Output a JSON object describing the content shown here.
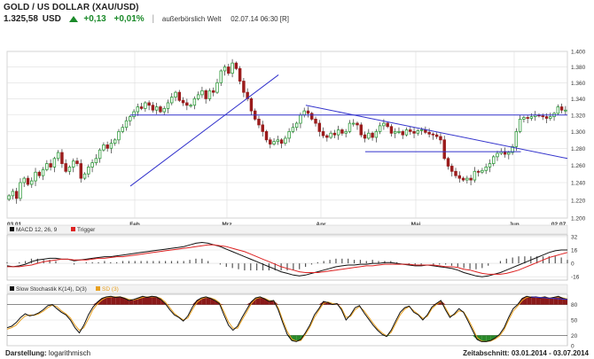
{
  "header": {
    "title": "GOLD / US DOLLAR (XAU/USD)",
    "price": "1.325,58",
    "currency": "USD",
    "change_abs": "+0,13",
    "change_pct": "+0,01%",
    "exchange": "außerbörslich Welt",
    "timestamp": "02.07.14 06:30 [R]"
  },
  "footer": {
    "display_label": "Darstellung:",
    "display_value": "logarithmisch",
    "period_label": "Zeitabschnitt:",
    "period_value": "03.01.2014 - 03.07.2014"
  },
  "panels": {
    "macd_legend": "MACD 12, 26, 9",
    "macd_trigger": "Trigger",
    "stoch_legend": "Slow Stochastik K(14), D(3)",
    "stoch_d": "SD (3)"
  },
  "colors": {
    "up_candle": "#2e9a3a",
    "down_candle": "#9b1c1c",
    "trendline": "#3333cc",
    "macd_line": "#111111",
    "trigger_line": "#dd2222",
    "histogram": "#555555",
    "stoch_k": "#111111",
    "stoch_d": "#e8a020",
    "fill_overbought": "#8b1a1a",
    "fill_oversold": "#2a8a2a",
    "grid": "#dddddd"
  },
  "chart_data": [
    {
      "type": "candlestick",
      "x_labels": [
        "03.01.",
        "Feb",
        "Mrz",
        "Apr",
        "Mai",
        "Jun",
        "02.07."
      ],
      "y_ticks": [
        "1.400",
        "1.380",
        "1.360",
        "1.340",
        "1.320",
        "1.300",
        "1.280",
        "1.260",
        "1.240",
        "1.220",
        "1.200"
      ],
      "ylim": [
        1200,
        1400
      ],
      "log_scale": true,
      "close": [
        1225,
        1230,
        1222,
        1240,
        1245,
        1238,
        1242,
        1252,
        1248,
        1255,
        1262,
        1258,
        1268,
        1275,
        1262,
        1253,
        1258,
        1265,
        1262,
        1245,
        1250,
        1258,
        1263,
        1268,
        1278,
        1284,
        1280,
        1286,
        1290,
        1300,
        1305,
        1313,
        1318,
        1324,
        1330,
        1328,
        1335,
        1332,
        1326,
        1330,
        1324,
        1328,
        1335,
        1342,
        1348,
        1338,
        1335,
        1332,
        1332,
        1340,
        1345,
        1350,
        1340,
        1350,
        1348,
        1360,
        1375,
        1380,
        1372,
        1385,
        1378,
        1362,
        1348,
        1340,
        1325,
        1315,
        1308,
        1300,
        1290,
        1285,
        1288,
        1290,
        1286,
        1292,
        1300,
        1305,
        1310,
        1320,
        1325,
        1322,
        1315,
        1310,
        1300,
        1295,
        1293,
        1298,
        1296,
        1302,
        1298,
        1300,
        1310,
        1310,
        1308,
        1296,
        1292,
        1298,
        1293,
        1300,
        1307,
        1310,
        1306,
        1298,
        1300,
        1300,
        1296,
        1302,
        1300,
        1298,
        1301,
        1302,
        1299,
        1297,
        1296,
        1294,
        1290,
        1268,
        1259,
        1253,
        1248,
        1245,
        1243,
        1245,
        1243,
        1253,
        1252,
        1254,
        1258,
        1262,
        1270,
        1274,
        1276,
        1273,
        1275,
        1282,
        1300,
        1315,
        1317,
        1316,
        1318,
        1320,
        1319,
        1318,
        1316,
        1318,
        1322,
        1330,
        1326,
        1326
      ],
      "trendlines": [
        {
          "from": [
            "2014-01-31",
            1236
          ],
          "to": [
            "2014-03-18",
            1370
          ]
        },
        {
          "from": [
            "2014-03-27",
            1332
          ],
          "to": [
            "2014-07-03",
            1268
          ]
        },
        {
          "from": [
            "2014-01-31",
            1320
          ],
          "to": [
            "2014-07-03",
            1320
          ]
        },
        {
          "from": [
            "2014-04-15",
            1276
          ],
          "to": [
            "2014-06-05",
            1276
          ]
        }
      ]
    },
    {
      "type": "line",
      "title": "MACD 12, 26, 9",
      "y_ticks": [
        "32",
        "16",
        "0",
        "-16"
      ],
      "ylim": [
        -20,
        34
      ],
      "series": [
        {
          "name": "MACD 12, 26, 9",
          "values": [
            -3,
            -4,
            -3,
            -1,
            2,
            4,
            5,
            6,
            6,
            5,
            5,
            3,
            4,
            5,
            6,
            7,
            8,
            8,
            9,
            10,
            11,
            12,
            13,
            14,
            15,
            16,
            17,
            18,
            19,
            20,
            22,
            24,
            25,
            24,
            22,
            20,
            17,
            14,
            11,
            8,
            5,
            2,
            -1,
            -4,
            -7,
            -10,
            -12,
            -14,
            -15,
            -14,
            -12,
            -10,
            -8,
            -6,
            -4,
            -3,
            -2,
            -2,
            -1,
            -1,
            0,
            0,
            1,
            1,
            0,
            -1,
            -2,
            -3,
            -3,
            -2,
            -3,
            -4,
            -5,
            -6,
            -8,
            -11,
            -13,
            -15,
            -16,
            -15,
            -13,
            -11,
            -8,
            -5,
            -2,
            1,
            4,
            7,
            10,
            13,
            15,
            16,
            16
          ]
        },
        {
          "name": "Trigger",
          "values": [
            -4,
            -4,
            -4,
            -3,
            -2,
            0,
            2,
            3,
            4,
            5,
            5,
            4,
            4,
            4,
            5,
            6,
            6,
            7,
            8,
            8,
            9,
            10,
            11,
            12,
            13,
            14,
            15,
            16,
            17,
            18,
            19,
            20,
            21,
            22,
            22,
            21,
            20,
            18,
            16,
            14,
            11,
            8,
            5,
            2,
            -1,
            -4,
            -6,
            -8,
            -10,
            -11,
            -11,
            -11,
            -10,
            -9,
            -8,
            -7,
            -6,
            -5,
            -4,
            -3,
            -3,
            -2,
            -1,
            -1,
            -1,
            -1,
            -1,
            -2,
            -2,
            -2,
            -2,
            -3,
            -4,
            -4,
            -5,
            -7,
            -8,
            -10,
            -12,
            -13,
            -13,
            -13,
            -12,
            -10,
            -8,
            -5,
            -2,
            1,
            4,
            7,
            9,
            11,
            13
          ]
        }
      ]
    },
    {
      "type": "line",
      "title": "Slow Stochastik K(14), D(3)",
      "y_ticks": [
        "80",
        "50",
        "20",
        "0"
      ],
      "ylim": [
        0,
        100
      ],
      "series": [
        {
          "name": "Slow Stochastik K(14)",
          "values": [
            35,
            38,
            45,
            55,
            62,
            58,
            60,
            64,
            70,
            78,
            80,
            72,
            65,
            60,
            50,
            35,
            25,
            40,
            60,
            75,
            85,
            92,
            95,
            96,
            94,
            95,
            92,
            88,
            90,
            93,
            96,
            94,
            96,
            95,
            90,
            82,
            70,
            60,
            55,
            48,
            58,
            75,
            88,
            93,
            95,
            92,
            88,
            82,
            60,
            40,
            30,
            38,
            55,
            70,
            85,
            93,
            95,
            91,
            86,
            88,
            70,
            45,
            22,
            10,
            8,
            12,
            25,
            40,
            60,
            72,
            86,
            84,
            80,
            82,
            70,
            50,
            60,
            74,
            78,
            64,
            52,
            40,
            30,
            22,
            18,
            30,
            48,
            65,
            74,
            77,
            65,
            60,
            50,
            60,
            75,
            82,
            88,
            70,
            55,
            62,
            72,
            65,
            48,
            30,
            12,
            8,
            8,
            10,
            15,
            22,
            35,
            55,
            72,
            80,
            92,
            96,
            94,
            95,
            93,
            95,
            92,
            94,
            96,
            92,
            90
          ]
        },
        {
          "name": "SD (3)",
          "values": [
            32,
            35,
            40,
            50,
            58,
            60,
            59,
            62,
            67,
            74,
            79,
            76,
            68,
            62,
            54,
            40,
            30,
            35,
            52,
            70,
            81,
            89,
            94,
            95,
            95,
            95,
            93,
            90,
            89,
            91,
            94,
            95,
            95,
            95,
            92,
            85,
            74,
            63,
            56,
            50,
            54,
            70,
            84,
            91,
            94,
            93,
            90,
            84,
            66,
            46,
            34,
            34,
            50,
            65,
            81,
            91,
            94,
            92,
            88,
            87,
            74,
            50,
            28,
            13,
            9,
            10,
            22,
            36,
            55,
            69,
            82,
            85,
            82,
            81,
            73,
            55,
            57,
            70,
            76,
            68,
            56,
            44,
            33,
            25,
            19,
            26,
            43,
            60,
            71,
            76,
            68,
            61,
            53,
            57,
            72,
            80,
            86,
            74,
            58,
            60,
            68,
            66,
            52,
            35,
            16,
            9,
            8,
            9,
            13,
            19,
            31,
            50,
            67,
            77,
            88,
            94,
            95,
            95,
            94,
            95,
            93,
            94,
            95,
            93,
            91
          ]
        }
      ]
    }
  ]
}
